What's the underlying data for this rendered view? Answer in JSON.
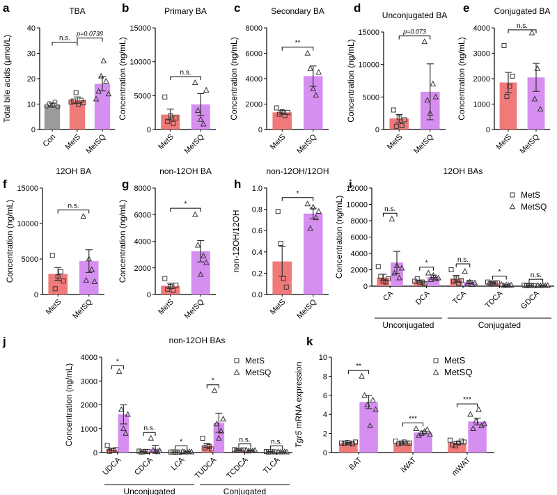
{
  "colors": {
    "pink": "#f07a7a",
    "purple": "#d68ef0",
    "gray": "#9b9b9b",
    "axis": "#000000"
  },
  "legend": {
    "a": "MetS",
    "b": "MetSQ"
  },
  "chart_data": [
    {
      "letter": "a",
      "type": "bar",
      "title": "TBA",
      "ylabel": "Total bile acids (μmol/L)",
      "ylim": [
        0,
        40
      ],
      "yticks": [
        "0",
        "10",
        "20",
        "30",
        "40"
      ],
      "categories": [
        "Con",
        "MetS",
        "MetSQ"
      ],
      "series": [
        {
          "values": [
            9.6,
            11.5,
            18.0
          ],
          "sem": [
            0.8,
            1.3,
            2.8
          ]
        }
      ],
      "points": [
        [
          9.2,
          10.2,
          9.5,
          10.8,
          9.0
        ],
        [
          10.8,
          11.2,
          14.5,
          10.0,
          11.5,
          10.5
        ],
        [
          12.0,
          15.0,
          21.0,
          27.0,
          19.0,
          14.0
        ]
      ],
      "significance": [
        {
          "label": "n.s."
        },
        {
          "label": "p=0.0738"
        }
      ]
    },
    {
      "letter": "b",
      "type": "bar",
      "title": "Primary BA",
      "ylabel": "Concentration (ng/mL)",
      "ylim": [
        0,
        15000
      ],
      "yticks": [
        "0",
        "5000",
        "10000",
        "15000"
      ],
      "categories": [
        "MetS",
        "MetSQ"
      ],
      "series": [
        {
          "values": [
            2200,
            3700
          ],
          "sem": [
            800,
            1600
          ]
        }
      ],
      "points": [
        [
          4800,
          1200,
          2000,
          900,
          1700
        ],
        [
          6900,
          2800,
          1500,
          800,
          5800
        ]
      ],
      "significance": [
        {
          "label": "n.s."
        }
      ]
    },
    {
      "letter": "c",
      "type": "bar",
      "title": "Secondary BA",
      "ylabel": "Concentration (ng/mL)",
      "ylim": [
        0,
        8000
      ],
      "yticks": [
        "0",
        "2000",
        "4000",
        "6000",
        "8000"
      ],
      "categories": [
        "MetS",
        "MetSQ"
      ],
      "series": [
        {
          "values": [
            1350,
            4200
          ],
          "sem": [
            150,
            800
          ]
        }
      ],
      "points": [
        [
          1700,
          1200,
          1400,
          1100,
          1350
        ],
        [
          6000,
          4800,
          3200,
          2700,
          4500
        ]
      ],
      "significance": [
        {
          "label": "**"
        }
      ]
    },
    {
      "letter": "d",
      "type": "bar",
      "title": "Unconjugated BA",
      "ylabel": "Concentration (ng/mL)",
      "ylim": [
        0,
        15000
      ],
      "yticks": [
        "0",
        "5000",
        "10000",
        "15000"
      ],
      "categories": [
        "MetS",
        "MetSQ"
      ],
      "series": [
        {
          "values": [
            1700,
            5800
          ],
          "sem": [
            600,
            4300
          ]
        }
      ],
      "points": [
        [
          3000,
          500,
          1800,
          600,
          1500
        ],
        [
          13500,
          4500,
          2500,
          7000,
          5000
        ]
      ],
      "significance": [
        {
          "label": "p=0.073"
        }
      ]
    },
    {
      "letter": "e",
      "type": "bar",
      "title": "Conjugated BA",
      "ylabel": "Concentration (ng/mL)",
      "ylim": [
        0,
        4000
      ],
      "yticks": [
        "0",
        "1000",
        "2000",
        "3000",
        "4000"
      ],
      "categories": [
        "MetS",
        "MetSQ"
      ],
      "series": [
        {
          "values": [
            1850,
            2050
          ],
          "sem": [
            400,
            550
          ]
        }
      ],
      "points": [
        [
          3300,
          1300,
          1700,
          2100
        ],
        [
          3800,
          1200,
          2400,
          800
        ]
      ],
      "significance": [
        {
          "label": "n.s."
        }
      ]
    },
    {
      "letter": "f",
      "type": "bar",
      "title": "12OH BA",
      "ylabel": "Concentration (ng/mL)",
      "ylim": [
        0,
        15000
      ],
      "yticks": [
        "0",
        "5000",
        "10000",
        "15000"
      ],
      "categories": [
        "MetS",
        "MetSQ"
      ],
      "series": [
        {
          "values": [
            2900,
            4700
          ],
          "sem": [
            900,
            1600
          ]
        }
      ],
      "points": [
        [
          5500,
          800,
          2500,
          3200,
          1900
        ],
        [
          11000,
          2000,
          5000,
          3500,
          1800
        ]
      ],
      "significance": [
        {
          "label": "n.s."
        }
      ]
    },
    {
      "letter": "g",
      "type": "bar",
      "title": "non-12OH BA",
      "ylabel": "Concentration (ng/mL)",
      "ylim": [
        0,
        8000
      ],
      "yticks": [
        "0",
        "2000",
        "4000",
        "6000",
        "8000"
      ],
      "categories": [
        "MetS",
        "MetSQ"
      ],
      "series": [
        {
          "values": [
            650,
            3250
          ],
          "sem": [
            200,
            800
          ]
        }
      ],
      "points": [
        [
          1200,
          400,
          600,
          300,
          700
        ],
        [
          6000,
          3700,
          1500,
          2900,
          2400
        ]
      ],
      "significance": [
        {
          "label": "*"
        }
      ]
    },
    {
      "letter": "h",
      "type": "bar",
      "title": "non-12OH/12OH",
      "ylabel": "non-12OH/12OH",
      "ylim": [
        0,
        1.0
      ],
      "yticks": [
        "0.0",
        "0.2",
        "0.4",
        "0.6",
        "0.8",
        "1.0"
      ],
      "categories": [
        "MetS",
        "MetSQ"
      ],
      "series": [
        {
          "values": [
            0.31,
            0.76
          ],
          "sem": [
            0.14,
            0.05
          ]
        }
      ],
      "points": [
        [
          0.78,
          0.48,
          0.15,
          0.07
        ],
        [
          0.85,
          0.62,
          0.82,
          0.72,
          0.78
        ]
      ],
      "significance": [
        {
          "label": "*"
        }
      ]
    },
    {
      "letter": "i",
      "type": "bar",
      "title": "12OH BAs",
      "ylabel": "Concentration (ng/mL)",
      "ylim": [
        0,
        12000
      ],
      "yticks": [
        "0",
        "2000",
        "4000",
        "6000",
        "8000",
        "10000",
        "12000"
      ],
      "categories": [
        "CA",
        "DCA",
        "TCA",
        "TDCA",
        "GDCA"
      ],
      "groups": [
        {
          "label": "Unconjugated",
          "from": 0,
          "to": 1
        },
        {
          "label": "Conjugated",
          "from": 2,
          "to": 4
        }
      ],
      "series": [
        {
          "name": "MetS",
          "values": [
            1050,
            580,
            900,
            380,
            80
          ],
          "sem": [
            400,
            150,
            400,
            80,
            30
          ]
        },
        {
          "name": "MetSQ",
          "values": [
            2900,
            1100,
            500,
            130,
            80
          ],
          "sem": [
            1350,
            250,
            200,
            40,
            30
          ]
        }
      ],
      "points": [
        [
          [
            2400,
            1200,
            600,
            500,
            900
          ],
          [
            600,
            900,
            400,
            500,
            300
          ],
          [
            2000,
            600,
            1000,
            300,
            700
          ],
          [
            500,
            300,
            400,
            350,
            400
          ],
          [
            100,
            50,
            120,
            80,
            60
          ]
        ],
        [
          [
            8200,
            1600,
            2500,
            1000,
            2200
          ],
          [
            1600,
            800,
            1300,
            900,
            1000
          ],
          [
            1800,
            300,
            500,
            200,
            400
          ],
          [
            200,
            80,
            150,
            100,
            120
          ],
          [
            100,
            60,
            90,
            70,
            80
          ]
        ]
      ],
      "significance": [
        {
          "label": "n.s."
        },
        {
          "label": "*"
        },
        {
          "label": "n.s."
        },
        {
          "label": "*"
        },
        {
          "label": "n.s."
        }
      ]
    },
    {
      "letter": "j",
      "type": "bar",
      "title": "non-12OH BAs",
      "ylabel": "Concentration (ng/mL)",
      "ylim": [
        0,
        4000
      ],
      "yticks": [
        "0",
        "1000",
        "2000",
        "3000",
        "4000"
      ],
      "categories": [
        "UDCA",
        "CDCA",
        "LCA",
        "TUDCA",
        "TCDCA",
        "TLCA"
      ],
      "groups": [
        {
          "label": "Unconjugated",
          "from": 0,
          "to": 2
        },
        {
          "label": "Conjugated",
          "from": 3,
          "to": 5
        }
      ],
      "series": [
        {
          "name": "MetS",
          "values": [
            130,
            40,
            20,
            300,
            100,
            30
          ],
          "sem": [
            50,
            15,
            8,
            90,
            20,
            10
          ]
        },
        {
          "name": "MetSQ",
          "values": [
            1600,
            150,
            30,
            1250,
            80,
            25
          ],
          "sem": [
            400,
            150,
            10,
            400,
            20,
            8
          ]
        }
      ],
      "points": [
        [
          [
            300,
            50,
            100,
            80,
            120
          ],
          [
            60,
            20,
            30,
            50,
            40
          ],
          [
            20,
            30,
            10,
            25,
            15
          ],
          [
            600,
            200,
            300,
            250,
            150
          ],
          [
            120,
            80,
            100,
            90,
            110
          ],
          [
            40,
            20,
            30,
            35,
            25
          ]
        ],
        [
          [
            3400,
            1800,
            1000,
            800,
            1600
          ],
          [
            600,
            100,
            50,
            30,
            80
          ],
          [
            40,
            20,
            30,
            35,
            25
          ],
          [
            2600,
            1200,
            600,
            900,
            1400
          ],
          [
            100,
            60,
            80,
            70,
            90
          ],
          [
            30,
            20,
            25,
            28,
            22
          ]
        ]
      ],
      "significance": [
        {
          "label": "*"
        },
        {
          "label": "n.s."
        },
        {
          "label": "*"
        },
        {
          "label": "*"
        },
        {
          "label": "n.s."
        },
        {
          "label": "n.s."
        }
      ]
    },
    {
      "letter": "k",
      "type": "bar",
      "ylabel_italic": "Tgr5",
      "ylabel": " mRNA expression",
      "ylim": [
        0,
        10
      ],
      "yticks": [
        "0",
        "2",
        "4",
        "6",
        "8",
        "10"
      ],
      "categories": [
        "BAT",
        "iWAT",
        "mWAT"
      ],
      "series": [
        {
          "name": "MetS",
          "values": [
            1.0,
            1.0,
            1.0
          ],
          "sem": [
            0.05,
            0.1,
            0.15
          ]
        },
        {
          "name": "MetSQ",
          "values": [
            5.3,
            2.1,
            3.25
          ],
          "sem": [
            0.7,
            0.15,
            0.35
          ]
        }
      ],
      "points": [
        [
          [
            1.0,
            0.95,
            1.05,
            1.0,
            0.9,
            1.1
          ],
          [
            1.2,
            0.9,
            1.0,
            1.1,
            0.95,
            1.0
          ],
          [
            1.3,
            0.8,
            0.7,
            1.0,
            1.2,
            1.1
          ]
        ],
        [
          [
            8.0,
            6.0,
            5.0,
            2.8,
            5.5,
            4.5
          ],
          [
            2.5,
            1.8,
            2.0,
            2.2,
            2.4,
            1.9
          ],
          [
            4.0,
            2.5,
            3.3,
            4.5,
            2.8,
            3.0
          ]
        ]
      ],
      "significance": [
        {
          "label": "**"
        },
        {
          "label": "***"
        },
        {
          "label": "***"
        }
      ]
    }
  ]
}
